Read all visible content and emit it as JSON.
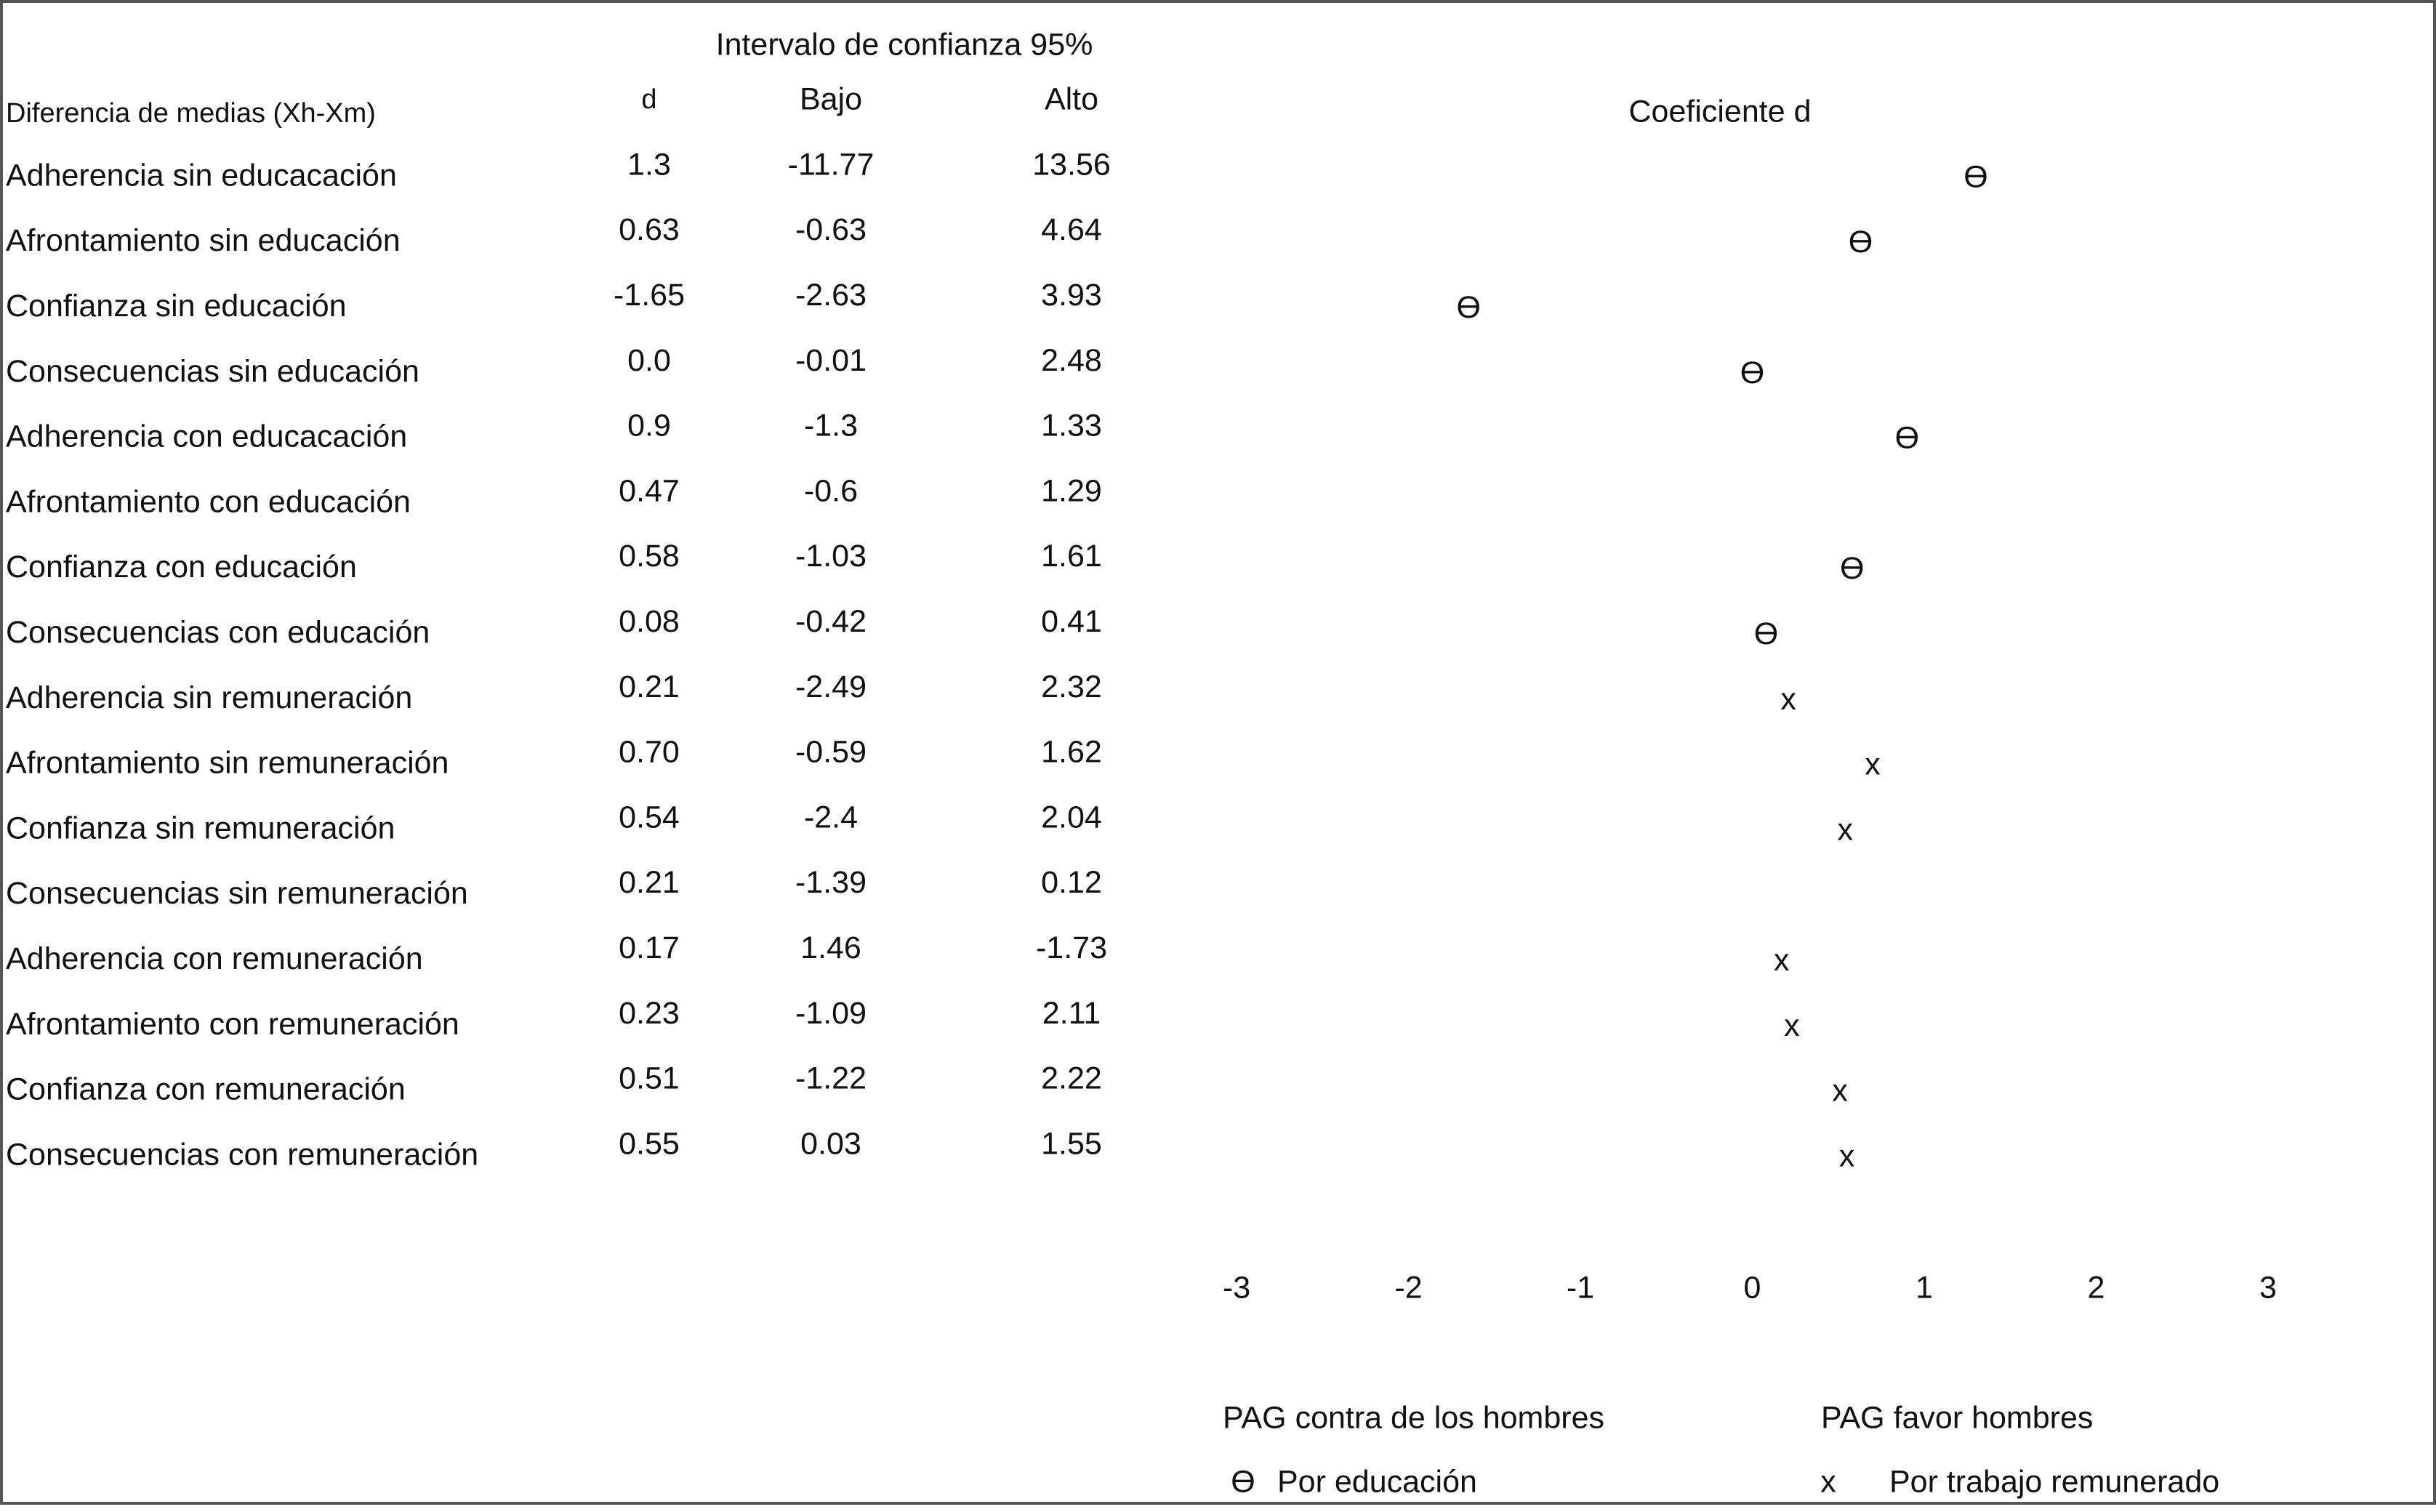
{
  "header": {
    "group": "Intervalo de confianza 95%",
    "columns": [
      "Diferencia de medias (Xh-Xm)",
      "d",
      "Bajo",
      "Alto"
    ],
    "plot_title": "Coeficiente d"
  },
  "table": {
    "rows": [
      [
        "Adherencia sin educacación",
        "1.3",
        "-11.77",
        "13.56"
      ],
      [
        "Afrontamiento sin educación",
        "0.63",
        "-0.63",
        "4.64"
      ],
      [
        "Confianza sin educación",
        "-1.65",
        "-2.63",
        "3.93"
      ],
      [
        "Consecuencias sin educación",
        "0.0",
        "-0.01",
        "2.48"
      ],
      [
        "Adherencia con educacación",
        "0.9",
        "-1.3",
        "1.33"
      ],
      [
        "Afrontamiento con educación",
        "0.47",
        "-0.6",
        "1.29"
      ],
      [
        "Confianza con educación",
        "0.58",
        "-1.03",
        "1.61"
      ],
      [
        "Consecuencias con educación",
        "0.08",
        "-0.42",
        "0.41"
      ],
      [
        "Adherencia sin remuneración",
        "0.21",
        "-2.49",
        "2.32"
      ],
      [
        "Afrontamiento sin remuneración",
        "0.70",
        "-0.59",
        "1.62"
      ],
      [
        "Confianza sin remuneración",
        "0.54",
        "-2.4",
        "2.04"
      ],
      [
        "Consecuencias sin remuneración",
        "0.21",
        "-1.39",
        "0.12"
      ],
      [
        "Adherencia  con remuneración",
        "0.17",
        "1.46",
        "-1.73"
      ],
      [
        "Afrontamiento con remuneración",
        "0.23",
        "-1.09",
        "2.11"
      ],
      [
        "Confianza con remuneración",
        "0.51",
        "-1.22",
        "2.22"
      ],
      [
        "Consecuencias con remuneración",
        "0.55",
        "0.03",
        "1.55"
      ]
    ]
  },
  "plot": {
    "markers": [
      "ϴ",
      "ϴ",
      "ϴ",
      "ϴ",
      "ϴ",
      null,
      "ϴ",
      "ϴ",
      "x",
      "x",
      "x",
      null,
      "x",
      "x",
      "x",
      "x"
    ],
    "xlim": [
      -3,
      3
    ],
    "xticks": [
      -3,
      -2,
      -1,
      0,
      1,
      2,
      3
    ]
  },
  "legend": {
    "left_heading": "PAG contra de los hombres",
    "right_heading": "PAG favor hombres",
    "items": [
      {
        "symbol": "ϴ",
        "label": "Por educación"
      },
      {
        "symbol": "x",
        "label": "Por trabajo remunerado"
      }
    ]
  }
}
